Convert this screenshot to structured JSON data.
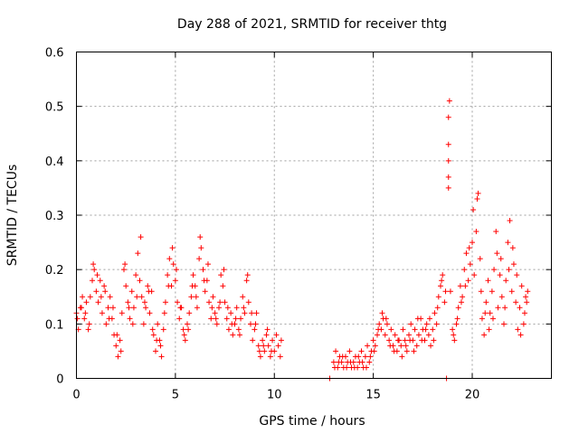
{
  "chart_data": {
    "type": "scatter",
    "title": "Day 288 of 2021, SRMTID for receiver thtg",
    "xlabel": "GPS time / hours",
    "ylabel": "SRMTID / TECUs",
    "xlim": [
      0,
      24
    ],
    "ylim": [
      0,
      0.6
    ],
    "xticks": [
      0,
      5,
      10,
      15,
      20
    ],
    "yticks": [
      0,
      0.1,
      0.2,
      0.3,
      0.4,
      0.5,
      0.6
    ],
    "xtick_labels": [
      "0",
      "5",
      "10",
      "15",
      "20"
    ],
    "ytick_labels": [
      "0",
      "0.1",
      "0.2",
      "0.3",
      "0.4",
      "0.5",
      "0.6"
    ],
    "grid": true,
    "marker": "+",
    "marker_color": "#ff0000",
    "series": [
      {
        "name": "thtg",
        "points": [
          [
            0.0,
            0.12
          ],
          [
            0.1,
            0.09
          ],
          [
            0.2,
            0.13
          ],
          [
            0.3,
            0.15
          ],
          [
            0.4,
            0.11
          ],
          [
            0.5,
            0.14
          ],
          [
            0.6,
            0.09
          ],
          [
            0.7,
            0.15
          ],
          [
            0.8,
            0.18
          ],
          [
            0.9,
            0.2
          ],
          [
            1.0,
            0.16
          ],
          [
            1.1,
            0.14
          ],
          [
            1.2,
            0.18
          ],
          [
            1.3,
            0.12
          ],
          [
            1.4,
            0.17
          ],
          [
            1.5,
            0.1
          ],
          [
            1.6,
            0.13
          ],
          [
            1.7,
            0.15
          ],
          [
            1.8,
            0.11
          ],
          [
            1.9,
            0.08
          ],
          [
            2.0,
            0.06
          ],
          [
            2.1,
            0.04
          ],
          [
            2.2,
            0.07
          ],
          [
            2.3,
            0.12
          ],
          [
            2.4,
            0.2
          ],
          [
            2.5,
            0.17
          ],
          [
            2.6,
            0.14
          ],
          [
            2.7,
            0.11
          ],
          [
            2.8,
            0.16
          ],
          [
            2.9,
            0.13
          ],
          [
            3.0,
            0.19
          ],
          [
            3.1,
            0.23
          ],
          [
            3.2,
            0.18
          ],
          [
            3.3,
            0.15
          ],
          [
            3.4,
            0.1
          ],
          [
            3.5,
            0.13
          ],
          [
            3.6,
            0.17
          ],
          [
            3.7,
            0.12
          ],
          [
            3.8,
            0.16
          ],
          [
            3.9,
            0.08
          ],
          [
            4.0,
            0.05
          ],
          [
            4.1,
            0.1
          ],
          [
            4.2,
            0.07
          ],
          [
            4.3,
            0.04
          ],
          [
            4.4,
            0.09
          ],
          [
            4.5,
            0.14
          ],
          [
            4.6,
            0.19
          ],
          [
            4.7,
            0.22
          ],
          [
            4.8,
            0.17
          ],
          [
            4.9,
            0.21
          ],
          [
            5.0,
            0.18
          ],
          [
            5.1,
            0.14
          ],
          [
            5.2,
            0.11
          ],
          [
            5.3,
            0.13
          ],
          [
            5.4,
            0.09
          ],
          [
            5.5,
            0.07
          ],
          [
            5.6,
            0.1
          ],
          [
            5.7,
            0.12
          ],
          [
            5.8,
            0.15
          ],
          [
            5.9,
            0.19
          ],
          [
            6.0,
            0.17
          ],
          [
            6.1,
            0.13
          ],
          [
            6.2,
            0.22
          ],
          [
            6.3,
            0.24
          ],
          [
            6.4,
            0.2
          ],
          [
            6.5,
            0.16
          ],
          [
            6.6,
            0.18
          ],
          [
            6.7,
            0.14
          ],
          [
            6.8,
            0.11
          ],
          [
            6.9,
            0.15
          ],
          [
            7.0,
            0.12
          ],
          [
            7.1,
            0.1
          ],
          [
            7.2,
            0.13
          ],
          [
            7.3,
            0.19
          ],
          [
            7.4,
            0.17
          ],
          [
            7.5,
            0.14
          ],
          [
            7.6,
            0.11
          ],
          [
            7.7,
            0.09
          ],
          [
            7.8,
            0.12
          ],
          [
            7.9,
            0.08
          ],
          [
            8.0,
            0.1
          ],
          [
            8.1,
            0.13
          ],
          [
            8.2,
            0.09
          ],
          [
            8.3,
            0.11
          ],
          [
            8.4,
            0.15
          ],
          [
            8.5,
            0.12
          ],
          [
            8.6,
            0.18
          ],
          [
            8.7,
            0.14
          ],
          [
            8.8,
            0.1
          ],
          [
            8.9,
            0.07
          ],
          [
            9.0,
            0.09
          ],
          [
            9.1,
            0.12
          ],
          [
            9.2,
            0.06
          ],
          [
            9.3,
            0.04
          ],
          [
            9.4,
            0.07
          ],
          [
            9.5,
            0.05
          ],
          [
            9.6,
            0.08
          ],
          [
            9.7,
            0.06
          ],
          [
            9.8,
            0.04
          ],
          [
            9.9,
            0.07
          ],
          [
            10.0,
            0.05
          ],
          [
            10.1,
            0.08
          ],
          [
            10.2,
            0.06
          ],
          [
            10.3,
            0.04
          ],
          [
            10.35,
            0.07
          ],
          [
            0.05,
            0.11
          ],
          [
            0.25,
            0.13
          ],
          [
            0.45,
            0.12
          ],
          [
            0.65,
            0.1
          ],
          [
            0.85,
            0.21
          ],
          [
            1.05,
            0.19
          ],
          [
            1.25,
            0.15
          ],
          [
            1.45,
            0.16
          ],
          [
            1.65,
            0.11
          ],
          [
            1.85,
            0.13
          ],
          [
            2.05,
            0.08
          ],
          [
            2.25,
            0.05
          ],
          [
            2.45,
            0.21
          ],
          [
            2.65,
            0.13
          ],
          [
            2.85,
            0.1
          ],
          [
            3.05,
            0.15
          ],
          [
            3.25,
            0.26
          ],
          [
            3.45,
            0.14
          ],
          [
            3.65,
            0.16
          ],
          [
            3.85,
            0.09
          ],
          [
            4.05,
            0.07
          ],
          [
            4.25,
            0.06
          ],
          [
            4.45,
            0.12
          ],
          [
            4.65,
            0.17
          ],
          [
            4.85,
            0.24
          ],
          [
            5.05,
            0.2
          ],
          [
            5.25,
            0.13
          ],
          [
            5.45,
            0.08
          ],
          [
            5.65,
            0.09
          ],
          [
            5.85,
            0.17
          ],
          [
            6.05,
            0.15
          ],
          [
            6.25,
            0.26
          ],
          [
            6.45,
            0.18
          ],
          [
            6.65,
            0.21
          ],
          [
            6.85,
            0.13
          ],
          [
            7.05,
            0.11
          ],
          [
            7.25,
            0.14
          ],
          [
            7.45,
            0.2
          ],
          [
            7.65,
            0.13
          ],
          [
            7.85,
            0.1
          ],
          [
            8.05,
            0.11
          ],
          [
            8.25,
            0.08
          ],
          [
            8.45,
            0.13
          ],
          [
            8.65,
            0.19
          ],
          [
            8.85,
            0.12
          ],
          [
            9.05,
            0.1
          ],
          [
            9.25,
            0.05
          ],
          [
            9.45,
            0.06
          ],
          [
            9.65,
            0.09
          ],
          [
            9.85,
            0.05
          ],
          [
            12.8,
            0.0
          ],
          [
            13.0,
            0.03
          ],
          [
            13.1,
            0.05
          ],
          [
            13.2,
            0.02
          ],
          [
            13.3,
            0.04
          ],
          [
            13.4,
            0.03
          ],
          [
            13.5,
            0.02
          ],
          [
            13.6,
            0.04
          ],
          [
            13.7,
            0.03
          ],
          [
            13.8,
            0.05
          ],
          [
            13.9,
            0.02
          ],
          [
            14.0,
            0.03
          ],
          [
            14.1,
            0.04
          ],
          [
            14.2,
            0.02
          ],
          [
            14.3,
            0.03
          ],
          [
            14.4,
            0.05
          ],
          [
            14.5,
            0.02
          ],
          [
            14.6,
            0.04
          ],
          [
            14.7,
            0.06
          ],
          [
            14.8,
            0.03
          ],
          [
            14.9,
            0.05
          ],
          [
            15.0,
            0.07
          ],
          [
            15.1,
            0.06
          ],
          [
            15.2,
            0.08
          ],
          [
            15.3,
            0.1
          ],
          [
            15.4,
            0.09
          ],
          [
            15.5,
            0.11
          ],
          [
            15.6,
            0.08
          ],
          [
            15.7,
            0.1
          ],
          [
            15.8,
            0.07
          ],
          [
            15.9,
            0.09
          ],
          [
            16.0,
            0.06
          ],
          [
            16.1,
            0.08
          ],
          [
            16.2,
            0.05
          ],
          [
            16.3,
            0.07
          ],
          [
            16.4,
            0.06
          ],
          [
            16.5,
            0.09
          ],
          [
            16.6,
            0.07
          ],
          [
            16.7,
            0.05
          ],
          [
            16.8,
            0.08
          ],
          [
            16.9,
            0.1
          ],
          [
            17.0,
            0.07
          ],
          [
            17.1,
            0.09
          ],
          [
            17.2,
            0.06
          ],
          [
            17.3,
            0.08
          ],
          [
            17.4,
            0.11
          ],
          [
            17.5,
            0.09
          ],
          [
            17.6,
            0.07
          ],
          [
            17.7,
            0.1
          ],
          [
            17.8,
            0.08
          ],
          [
            17.9,
            0.06
          ],
          [
            18.0,
            0.09
          ],
          [
            18.1,
            0.12
          ],
          [
            18.2,
            0.1
          ],
          [
            18.3,
            0.15
          ],
          [
            18.4,
            0.17
          ],
          [
            18.5,
            0.19
          ],
          [
            18.6,
            0.14
          ],
          [
            18.7,
            0.0
          ],
          [
            18.8,
            0.37
          ],
          [
            18.8,
            0.4
          ],
          [
            18.8,
            0.43
          ],
          [
            18.8,
            0.48
          ],
          [
            18.85,
            0.51
          ],
          [
            18.9,
            0.16
          ],
          [
            19.0,
            0.09
          ],
          [
            19.1,
            0.07
          ],
          [
            19.2,
            0.1
          ],
          [
            19.3,
            0.13
          ],
          [
            19.4,
            0.17
          ],
          [
            19.5,
            0.15
          ],
          [
            19.6,
            0.2
          ],
          [
            19.7,
            0.23
          ],
          [
            19.8,
            0.18
          ],
          [
            19.9,
            0.21
          ],
          [
            20.0,
            0.25
          ],
          [
            20.1,
            0.19
          ],
          [
            20.2,
            0.27
          ],
          [
            20.3,
            0.34
          ],
          [
            20.4,
            0.22
          ],
          [
            20.5,
            0.11
          ],
          [
            20.6,
            0.08
          ],
          [
            20.7,
            0.14
          ],
          [
            20.8,
            0.18
          ],
          [
            20.9,
            0.12
          ],
          [
            21.0,
            0.16
          ],
          [
            21.1,
            0.2
          ],
          [
            21.2,
            0.27
          ],
          [
            21.3,
            0.13
          ],
          [
            21.4,
            0.19
          ],
          [
            21.5,
            0.15
          ],
          [
            21.6,
            0.1
          ],
          [
            21.7,
            0.18
          ],
          [
            21.8,
            0.25
          ],
          [
            21.9,
            0.29
          ],
          [
            22.0,
            0.16
          ],
          [
            22.1,
            0.21
          ],
          [
            22.2,
            0.14
          ],
          [
            22.3,
            0.09
          ],
          [
            22.4,
            0.13
          ],
          [
            22.5,
            0.17
          ],
          [
            22.6,
            0.1
          ],
          [
            22.7,
            0.15
          ],
          [
            22.8,
            0.16
          ],
          [
            13.05,
            0.02
          ],
          [
            13.25,
            0.03
          ],
          [
            13.45,
            0.04
          ],
          [
            13.65,
            0.02
          ],
          [
            13.85,
            0.03
          ],
          [
            14.05,
            0.02
          ],
          [
            14.25,
            0.04
          ],
          [
            14.45,
            0.03
          ],
          [
            14.65,
            0.02
          ],
          [
            14.85,
            0.04
          ],
          [
            15.05,
            0.05
          ],
          [
            15.25,
            0.09
          ],
          [
            15.45,
            0.12
          ],
          [
            15.65,
            0.11
          ],
          [
            15.85,
            0.06
          ],
          [
            16.05,
            0.05
          ],
          [
            16.25,
            0.07
          ],
          [
            16.45,
            0.04
          ],
          [
            16.65,
            0.06
          ],
          [
            16.85,
            0.07
          ],
          [
            17.05,
            0.05
          ],
          [
            17.25,
            0.11
          ],
          [
            17.45,
            0.07
          ],
          [
            17.65,
            0.09
          ],
          [
            17.85,
            0.11
          ],
          [
            18.05,
            0.07
          ],
          [
            18.25,
            0.13
          ],
          [
            18.45,
            0.18
          ],
          [
            18.65,
            0.16
          ],
          [
            18.8,
            0.35
          ],
          [
            19.05,
            0.08
          ],
          [
            19.25,
            0.11
          ],
          [
            19.45,
            0.14
          ],
          [
            19.65,
            0.17
          ],
          [
            19.85,
            0.24
          ],
          [
            20.05,
            0.31
          ],
          [
            20.25,
            0.33
          ],
          [
            20.45,
            0.16
          ],
          [
            20.65,
            0.12
          ],
          [
            20.85,
            0.09
          ],
          [
            21.05,
            0.11
          ],
          [
            21.25,
            0.23
          ],
          [
            21.45,
            0.22
          ],
          [
            21.65,
            0.13
          ],
          [
            21.85,
            0.2
          ],
          [
            22.05,
            0.24
          ],
          [
            22.25,
            0.19
          ],
          [
            22.45,
            0.08
          ],
          [
            22.65,
            0.12
          ],
          [
            22.75,
            0.14
          ]
        ]
      }
    ]
  }
}
